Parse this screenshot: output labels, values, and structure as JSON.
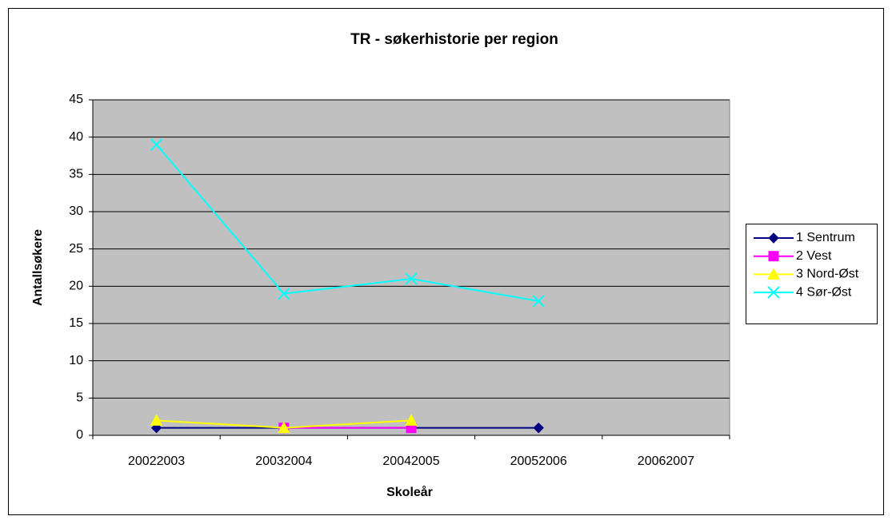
{
  "chart_data": {
    "type": "line",
    "title": "TR - søkerhistorie per region",
    "x_label": "Skoleår",
    "y_label": "Antallsøkere",
    "categories": [
      "20022003",
      "20032004",
      "20042005",
      "20052006",
      "20062007"
    ],
    "series": [
      {
        "name": "1 Sentrum",
        "color": "#000080",
        "marker": "diamond",
        "values": [
          1,
          1,
          1,
          1,
          null
        ]
      },
      {
        "name": "2 Vest",
        "color": "#FF00FF",
        "marker": "square",
        "values": [
          null,
          1,
          1,
          null,
          null
        ]
      },
      {
        "name": "3 Nord-Øst",
        "color": "#FFFF00",
        "marker": "triangle",
        "values": [
          2,
          1,
          2,
          null,
          null
        ]
      },
      {
        "name": "4 Sør-Øst",
        "color": "#00FFFF",
        "marker": "x",
        "values": [
          39,
          19,
          21,
          18,
          null
        ]
      }
    ],
    "ylim": [
      0,
      45
    ],
    "yticks": [
      0,
      5,
      10,
      15,
      20,
      25,
      30,
      35,
      40,
      45
    ],
    "grid": true,
    "legend": "right",
    "plot_background": "#C0C0C0"
  }
}
